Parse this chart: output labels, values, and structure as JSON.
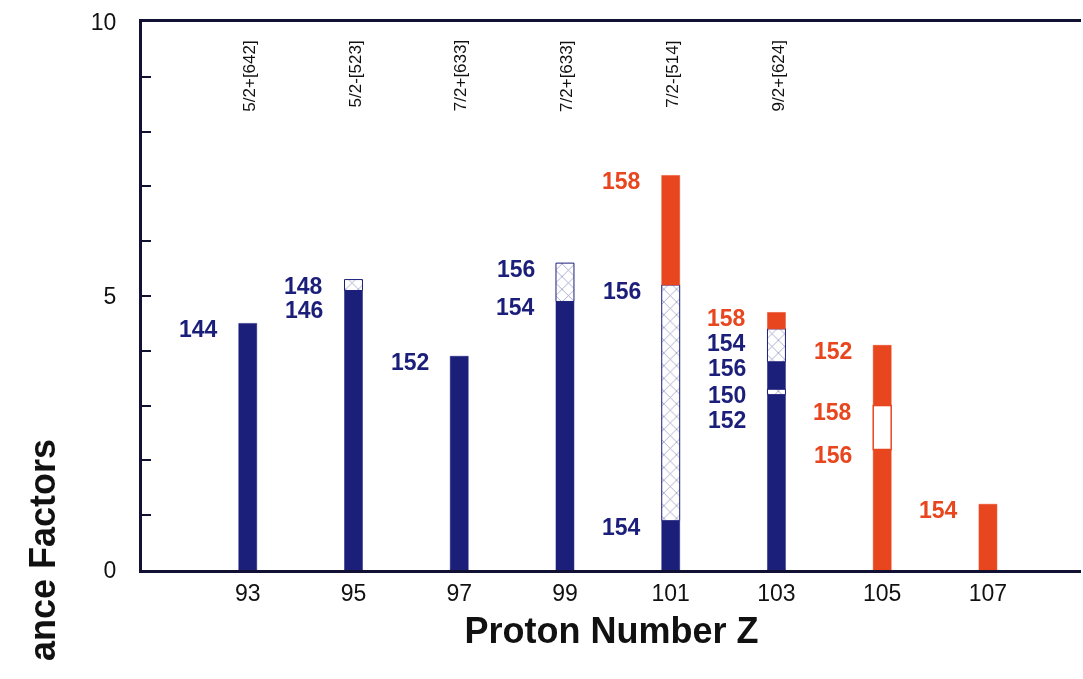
{
  "chart_data": {
    "type": "bar",
    "stacked": true,
    "xlabel": "Proton Number Z",
    "ylabel": "ance Factors",
    "categories": [
      "93",
      "95",
      "97",
      "99",
      "101",
      "103",
      "105",
      "107"
    ],
    "series": [
      {
        "color": "#1c1f7a",
        "values": [
          4.5,
          5.1,
          3.9,
          4.9,
          0.9,
          3.2,
          null,
          null
        ]
      },
      {
        "color": "#1c1f7a",
        "marker": "cross",
        "values": [
          null,
          0.2,
          null,
          0.7,
          4.3,
          0.1,
          null,
          null
        ]
      },
      {
        "color": "#1c1f7a",
        "values": [
          null,
          null,
          null,
          null,
          null,
          0.5,
          null,
          null
        ]
      },
      {
        "color": "#1c1f7a",
        "marker": "cross",
        "values": [
          null,
          null,
          null,
          null,
          null,
          0.6,
          null,
          null
        ]
      },
      {
        "color": "#e8461e",
        "values": [
          null,
          null,
          null,
          null,
          2.0,
          0.3,
          2.2,
          1.2
        ]
      },
      {
        "color": "#e8461e",
        "marker": "square",
        "values": [
          null,
          null,
          null,
          null,
          null,
          null,
          0.8,
          null
        ]
      },
      {
        "color": "#e8461e",
        "values": [
          null,
          null,
          null,
          null,
          null,
          null,
          1.1,
          null
        ]
      }
    ],
    "ylim": [
      0,
      10
    ],
    "yticks": [
      0,
      {
        "value": 1,
        "label": null
      },
      {
        "value": 2,
        "label": null
      },
      {
        "value": 3,
        "label": null
      },
      {
        "value": 4,
        "label": null
      },
      5,
      {
        "value": 6,
        "label": null
      },
      {
        "value": 7,
        "label": null
      },
      {
        "value": 8,
        "label": null
      },
      {
        "value": 9,
        "label": null
      },
      10
    ],
    "annotations": [
      "5/2+[642]",
      "5/2-[523]",
      "7/2+[633]",
      "7/2+[633]",
      "7/2-[514]",
      "9/2+[624]",
      {
        "text": "144",
        "x": "93",
        "y": 4.5
      },
      {
        "text": "146",
        "x": "95",
        "y": 5.1
      },
      {
        "text": "148",
        "x": "95",
        "y": 5.3
      },
      {
        "text": "152",
        "x": "97",
        "y": 3.9
      },
      {
        "text": "154",
        "x": "99",
        "y": 4.9
      },
      {
        "text": "156",
        "x": "99",
        "y": 5.6
      },
      {
        "text": "154",
        "x": "101",
        "y": 0.9
      },
      {
        "text": "156",
        "x": "101",
        "y": 5.2
      },
      {
        "text": "158",
        "x": "101",
        "y": 7.2
      },
      {
        "text": "152",
        "x": "103",
        "y": 3.2
      },
      {
        "text": "150",
        "x": "103",
        "y": 3.3
      },
      {
        "text": "156",
        "x": "103",
        "y": 3.8
      },
      {
        "text": "154",
        "x": "103",
        "y": 4.4
      },
      {
        "text": "158",
        "x": "103",
        "y": 4.7
      },
      {
        "text": "156",
        "x": "105",
        "y": 2.2
      },
      {
        "text": "158",
        "x": "105",
        "y": 3.0
      },
      {
        "text": "152",
        "x": "105",
        "y": 4.1
      },
      {
        "text": "154",
        "x": "107",
        "y": 1.2
      }
    ]
  }
}
